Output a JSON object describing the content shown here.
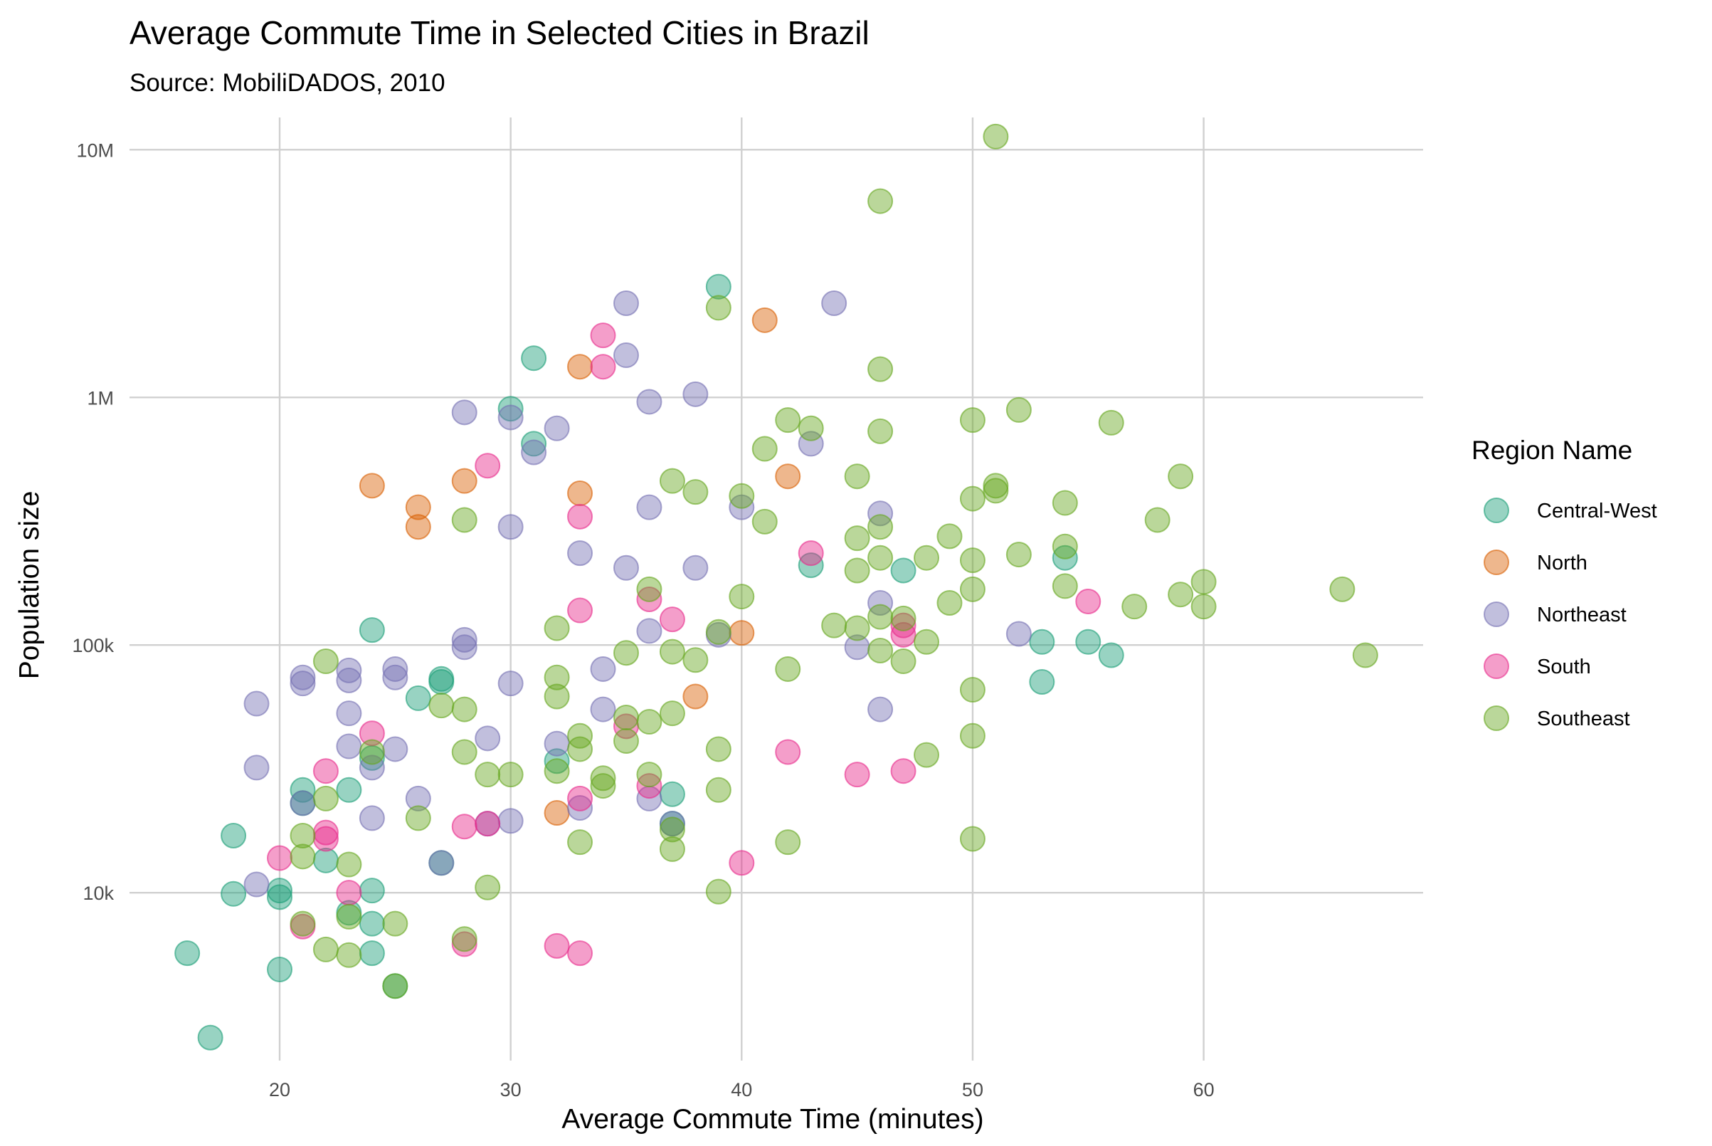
{
  "chart_data": {
    "type": "scatter",
    "title": "Average Commute Time in Selected Cities in Brazil",
    "subtitle": "Source: MobiliDADOS, 2010",
    "xlabel": "Average Commute Time (minutes)",
    "ylabel": "Population size",
    "x_scale": "linear",
    "y_scale": "log10",
    "xlim": [
      13.5,
      69.5
    ],
    "ylim": [
      2100,
      13500000
    ],
    "x_ticks": [
      20,
      30,
      40,
      50,
      60
    ],
    "x_tick_labels": [
      "20",
      "30",
      "40",
      "50",
      "60"
    ],
    "y_ticks": [
      10000,
      100000,
      1000000,
      10000000
    ],
    "y_tick_labels": [
      "10k",
      "100k",
      "1M",
      "10M"
    ],
    "grid": true,
    "legend": {
      "title": "Region Name",
      "position": "right"
    },
    "series": [
      {
        "name": "Central-West",
        "color": "#1b9e77",
        "points": [
          [
            16,
            5700
          ],
          [
            17,
            2600
          ],
          [
            18,
            17000
          ],
          [
            18,
            9900
          ],
          [
            20,
            9600
          ],
          [
            20,
            10200
          ],
          [
            20,
            4900
          ],
          [
            21,
            26000
          ],
          [
            21,
            23000
          ],
          [
            22,
            13500
          ],
          [
            23,
            26000
          ],
          [
            23,
            8300
          ],
          [
            24,
            115000
          ],
          [
            24,
            35000
          ],
          [
            24,
            10200
          ],
          [
            24,
            7500
          ],
          [
            24,
            5700
          ],
          [
            25,
            4200
          ],
          [
            26,
            61000
          ],
          [
            27,
            73000
          ],
          [
            27,
            71000
          ],
          [
            27,
            13200
          ],
          [
            30,
            900000
          ],
          [
            31,
            1440000
          ],
          [
            31,
            650000
          ],
          [
            32,
            34000
          ],
          [
            37,
            25000
          ],
          [
            37,
            19000
          ],
          [
            39,
            2800000
          ],
          [
            43,
            210000
          ],
          [
            47,
            200000
          ],
          [
            53,
            103000
          ],
          [
            53,
            71000
          ],
          [
            54,
            225000
          ],
          [
            55,
            103000
          ],
          [
            56,
            91000
          ]
        ]
      },
      {
        "name": "North",
        "color": "#d95f02",
        "points": [
          [
            24,
            440000
          ],
          [
            26,
            360000
          ],
          [
            26,
            300000
          ],
          [
            28,
            460000
          ],
          [
            32,
            21000
          ],
          [
            33,
            1330000
          ],
          [
            33,
            410000
          ],
          [
            38,
            62000
          ],
          [
            40,
            112000
          ],
          [
            41,
            2050000
          ],
          [
            42,
            480000
          ]
        ]
      },
      {
        "name": "Northeast",
        "color": "#7570b3",
        "points": [
          [
            19,
            58000
          ],
          [
            19,
            32000
          ],
          [
            19,
            10800
          ],
          [
            21,
            74000
          ],
          [
            21,
            70000
          ],
          [
            21,
            23000
          ],
          [
            23,
            79000
          ],
          [
            23,
            72000
          ],
          [
            23,
            53000
          ],
          [
            23,
            39000
          ],
          [
            24,
            32000
          ],
          [
            24,
            20000
          ],
          [
            25,
            80000
          ],
          [
            25,
            74000
          ],
          [
            25,
            38000
          ],
          [
            26,
            24000
          ],
          [
            27,
            13200
          ],
          [
            28,
            870000
          ],
          [
            28,
            105000
          ],
          [
            28,
            98000
          ],
          [
            29,
            42000
          ],
          [
            29,
            19000
          ],
          [
            30,
            830000
          ],
          [
            30,
            300000
          ],
          [
            30,
            70000
          ],
          [
            30,
            19500
          ],
          [
            31,
            600000
          ],
          [
            32,
            750000
          ],
          [
            32,
            40000
          ],
          [
            33,
            235000
          ],
          [
            33,
            22000
          ],
          [
            34,
            80000
          ],
          [
            34,
            55000
          ],
          [
            35,
            2400000
          ],
          [
            35,
            1480000
          ],
          [
            35,
            205000
          ],
          [
            36,
            960000
          ],
          [
            36,
            360000
          ],
          [
            36,
            114000
          ],
          [
            36,
            24000
          ],
          [
            37,
            19000
          ],
          [
            38,
            1030000
          ],
          [
            38,
            205000
          ],
          [
            39,
            110000
          ],
          [
            40,
            360000
          ],
          [
            43,
            650000
          ],
          [
            44,
            2400000
          ],
          [
            45,
            98000
          ],
          [
            46,
            340000
          ],
          [
            46,
            148000
          ],
          [
            46,
            55000
          ],
          [
            52,
            111000
          ]
        ]
      },
      {
        "name": "South",
        "color": "#e7298a",
        "points": [
          [
            20,
            13800
          ],
          [
            21,
            7300
          ],
          [
            22,
            31000
          ],
          [
            22,
            17500
          ],
          [
            22,
            16500
          ],
          [
            23,
            10000
          ],
          [
            24,
            44000
          ],
          [
            28,
            18500
          ],
          [
            28,
            6200
          ],
          [
            29,
            530000
          ],
          [
            29,
            19000
          ],
          [
            32,
            6100
          ],
          [
            33,
            330000
          ],
          [
            33,
            138000
          ],
          [
            33,
            24000
          ],
          [
            33,
            5700
          ],
          [
            34,
            1780000
          ],
          [
            34,
            1330000
          ],
          [
            35,
            47000
          ],
          [
            36,
            153000
          ],
          [
            36,
            27000
          ],
          [
            37,
            127000
          ],
          [
            40,
            13200
          ],
          [
            42,
            37000
          ],
          [
            43,
            235000
          ],
          [
            45,
            30000
          ],
          [
            47,
            120000
          ],
          [
            47,
            110000
          ],
          [
            47,
            31000
          ],
          [
            55,
            150000
          ]
        ]
      },
      {
        "name": "Southeast",
        "color": "#66a61e",
        "points": [
          [
            21,
            17000
          ],
          [
            21,
            14000
          ],
          [
            21,
            7500
          ],
          [
            22,
            86000
          ],
          [
            22,
            24000
          ],
          [
            22,
            5900
          ],
          [
            23,
            13000
          ],
          [
            23,
            8000
          ],
          [
            23,
            5600
          ],
          [
            24,
            37000
          ],
          [
            25,
            7500
          ],
          [
            25,
            4200
          ],
          [
            26,
            20000
          ],
          [
            27,
            57000
          ],
          [
            28,
            320000
          ],
          [
            28,
            55000
          ],
          [
            28,
            37000
          ],
          [
            28,
            6500
          ],
          [
            29,
            30000
          ],
          [
            29,
            10500
          ],
          [
            30,
            30000
          ],
          [
            32,
            117000
          ],
          [
            32,
            74000
          ],
          [
            32,
            62000
          ],
          [
            32,
            31000
          ],
          [
            33,
            43000
          ],
          [
            33,
            38000
          ],
          [
            33,
            16000
          ],
          [
            34,
            29000
          ],
          [
            34,
            27000
          ],
          [
            35,
            93000
          ],
          [
            35,
            51000
          ],
          [
            35,
            41000
          ],
          [
            36,
            168000
          ],
          [
            36,
            49000
          ],
          [
            36,
            30000
          ],
          [
            37,
            460000
          ],
          [
            37,
            94000
          ],
          [
            37,
            53000
          ],
          [
            37,
            18000
          ],
          [
            37,
            15000
          ],
          [
            38,
            415000
          ],
          [
            38,
            87000
          ],
          [
            39,
            2300000
          ],
          [
            39,
            113000
          ],
          [
            39,
            38000
          ],
          [
            39,
            26000
          ],
          [
            39,
            10100
          ],
          [
            40,
            400000
          ],
          [
            40,
            157000
          ],
          [
            41,
            620000
          ],
          [
            41,
            315000
          ],
          [
            42,
            810000
          ],
          [
            42,
            80000
          ],
          [
            42,
            16000
          ],
          [
            43,
            750000
          ],
          [
            44,
            120000
          ],
          [
            45,
            480000
          ],
          [
            45,
            270000
          ],
          [
            45,
            200000
          ],
          [
            45,
            117000
          ],
          [
            46,
            6200000
          ],
          [
            46,
            1300000
          ],
          [
            46,
            730000
          ],
          [
            46,
            300000
          ],
          [
            46,
            225000
          ],
          [
            46,
            130000
          ],
          [
            46,
            95000
          ],
          [
            47,
            128000
          ],
          [
            47,
            86000
          ],
          [
            48,
            225000
          ],
          [
            48,
            103000
          ],
          [
            48,
            36000
          ],
          [
            49,
            275000
          ],
          [
            49,
            148000
          ],
          [
            50,
            810000
          ],
          [
            50,
            390000
          ],
          [
            50,
            220000
          ],
          [
            50,
            168000
          ],
          [
            50,
            66000
          ],
          [
            50,
            43000
          ],
          [
            50,
            16500
          ],
          [
            51,
            11300000
          ],
          [
            51,
            440000
          ],
          [
            51,
            420000
          ],
          [
            52,
            890000
          ],
          [
            52,
            232000
          ],
          [
            54,
            375000
          ],
          [
            54,
            250000
          ],
          [
            54,
            173000
          ],
          [
            56,
            790000
          ],
          [
            57,
            143000
          ],
          [
            58,
            320000
          ],
          [
            59,
            480000
          ],
          [
            59,
            160000
          ],
          [
            60,
            180000
          ],
          [
            60,
            143000
          ],
          [
            66,
            168000
          ],
          [
            67,
            91000
          ]
        ]
      }
    ]
  }
}
